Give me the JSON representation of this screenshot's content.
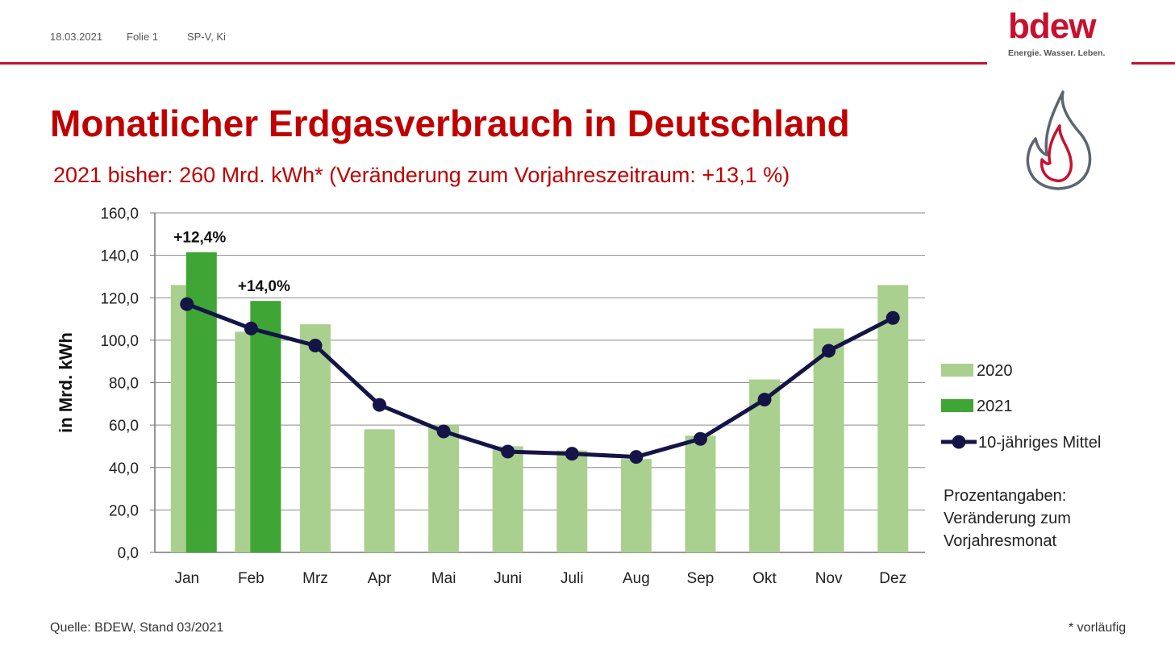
{
  "header": {
    "date": "18.03.2021",
    "slide": "Folie 1",
    "author": "SP-V, Ki"
  },
  "logo": {
    "wordmark": "bdew",
    "tagline": "Energie. Wasser. Leben.",
    "color": "#c8102e"
  },
  "title": "Monatlicher Erdgasverbrauch in Deutschland",
  "subtitle": "2021 bisher: 260 Mrd. kWh* (Veränderung zum Vorjahreszeitraum: +13,1 %)",
  "chart_data": {
    "type": "bar",
    "ylabel": "in Mrd. kWh",
    "ylim": [
      0,
      160
    ],
    "yticks": [
      "0,0",
      "20,0",
      "40,0",
      "60,0",
      "80,0",
      "100,0",
      "120,0",
      "140,0",
      "160,0"
    ],
    "grid": true,
    "categories": [
      "Jan",
      "Feb",
      "Mrz",
      "Apr",
      "Mai",
      "Juni",
      "Juli",
      "Aug",
      "Sep",
      "Okt",
      "Nov",
      "Dez"
    ],
    "series": [
      {
        "name": "2020",
        "kind": "bar",
        "color": "#a9d08e",
        "values": [
          126,
          104,
          107.5,
          58,
          60,
          50,
          48,
          44,
          55,
          81.5,
          105.5,
          126
        ]
      },
      {
        "name": "2021",
        "kind": "bar",
        "color": "#3fa535",
        "values": [
          141.5,
          118.5,
          null,
          null,
          null,
          null,
          null,
          null,
          null,
          null,
          null,
          null
        ]
      },
      {
        "name": "10-jähriges Mittel",
        "kind": "line",
        "color": "#141446",
        "values": [
          117,
          105.5,
          97.5,
          69.5,
          57,
          47.5,
          46.5,
          45,
          53.5,
          72,
          95,
          110.5
        ]
      }
    ],
    "annotations": [
      {
        "category": "Jan",
        "text": "+12,4%"
      },
      {
        "category": "Feb",
        "text": "+14,0%"
      }
    ],
    "legend_position": "right"
  },
  "note_lines": [
    "Prozentangaben:",
    "Veränderung zum",
    "Vorjahresmonat"
  ],
  "source": "Quelle: BDEW, Stand 03/2021",
  "footnote": "* vorläufig"
}
